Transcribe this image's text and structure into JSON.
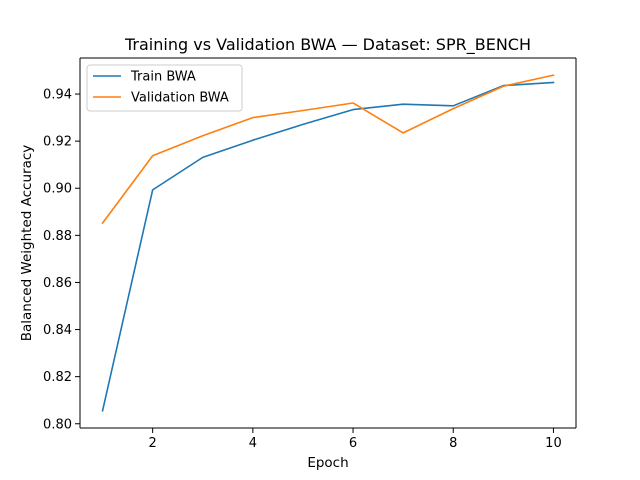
{
  "chart_data": {
    "type": "line",
    "title": "Training vs Validation BWA — Dataset: SPR_BENCH",
    "xlabel": "Epoch",
    "ylabel": "Balanced Weighted Accuracy",
    "x": [
      1,
      2,
      3,
      4,
      5,
      6,
      7,
      8,
      9,
      10
    ],
    "xlim": [
      0.55,
      10.45
    ],
    "ylim": [
      0.7982,
      0.9553
    ],
    "xticks": [
      2,
      4,
      6,
      8,
      10
    ],
    "yticks": [
      0.8,
      0.82,
      0.84,
      0.86,
      0.88,
      0.9,
      0.92,
      0.94
    ],
    "xtick_labels": [
      "2",
      "4",
      "6",
      "8",
      "10"
    ],
    "ytick_labels": [
      "0.80",
      "0.82",
      "0.84",
      "0.86",
      "0.88",
      "0.90",
      "0.92",
      "0.94"
    ],
    "grid": false,
    "legend_position": "top-left",
    "series": [
      {
        "name": "Train BWA",
        "color": "#1f77b4",
        "values": [
          0.8055,
          0.8993,
          0.9131,
          0.9204,
          0.9271,
          0.9334,
          0.9357,
          0.935,
          0.9436,
          0.9449
        ]
      },
      {
        "name": "Validation BWA",
        "color": "#ff7f0e",
        "values": [
          0.8852,
          0.9138,
          0.9223,
          0.93,
          0.933,
          0.9362,
          0.9235,
          0.9338,
          0.9433,
          0.948
        ]
      }
    ]
  }
}
